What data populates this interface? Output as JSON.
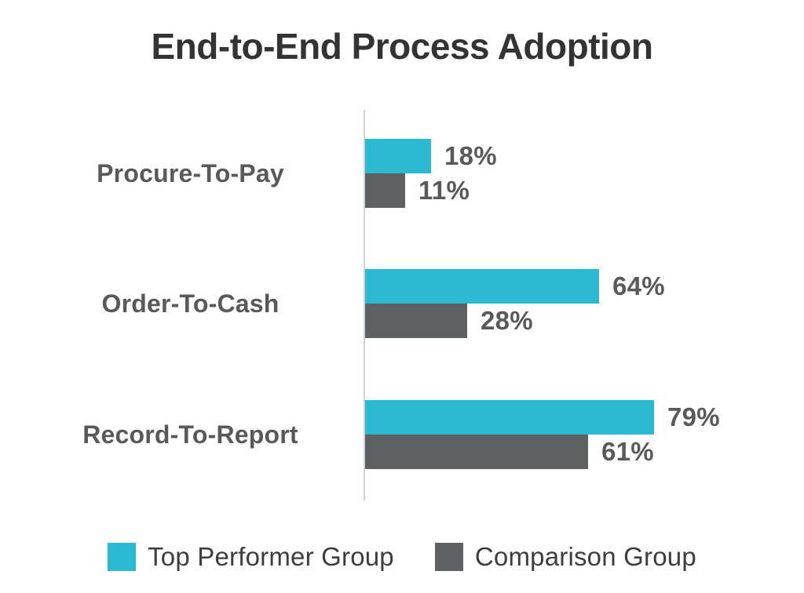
{
  "chart_data": {
    "type": "bar",
    "orientation": "horizontal",
    "title": "End-to-End Process Adoption",
    "categories": [
      "Procure-To-Pay",
      "Order-To-Cash",
      "Record-To-Report"
    ],
    "series": [
      {
        "name": "Top Performer Group",
        "color": "#2BBAD1",
        "values": [
          18,
          64,
          79
        ],
        "labels": [
          "18%",
          "64%",
          "79%"
        ]
      },
      {
        "name": "Comparison Group",
        "color": "#5E6062",
        "values": [
          11,
          28,
          61
        ],
        "labels": [
          "11%",
          "28%",
          "61%"
        ]
      }
    ],
    "xlim": [
      0,
      100
    ],
    "grid": false,
    "legend_position": "bottom",
    "axis_line_color": "#D2D2D2",
    "text_colors": {
      "title": "#333333",
      "category": "#58595B",
      "value": "#58595B",
      "legend": "#3D3D3D"
    }
  }
}
